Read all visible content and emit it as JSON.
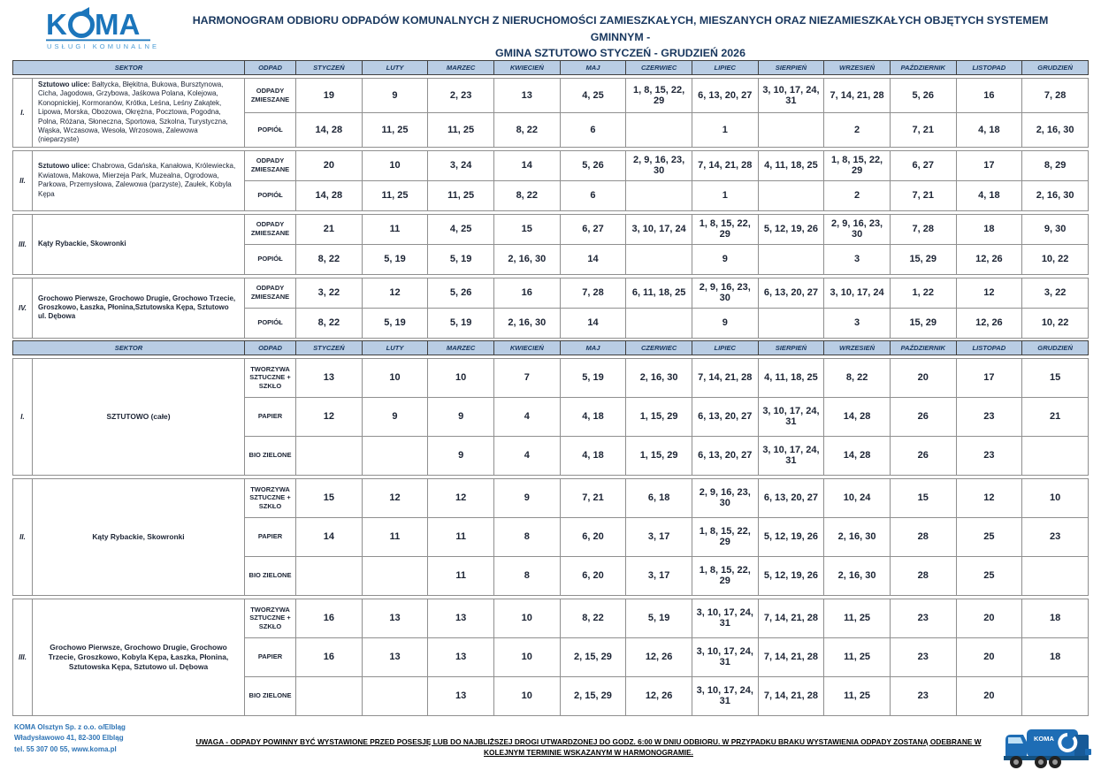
{
  "logo": {
    "brand": "KOMA",
    "tagline": "USŁUGI KOMUNALNE"
  },
  "title": {
    "line1": "HARMONOGRAM ODBIORU ODPADÓW KOMUNALNYCH Z NIERUCHOMOŚCI ZAMIESZKAŁYCH, MIESZANYCH ORAZ NIEZAMIESZKAŁYCH OBJĘTYCH SYSTEMEM GMINNYM -",
    "line2": "GMINA SZTUTOWO  STYCZEŃ - GRUDZIEŃ 2026"
  },
  "columns": {
    "sektor": "SEKTOR",
    "odpad": "ODPAD",
    "months": [
      "STYCZEŃ",
      "LUTY",
      "MARZEC",
      "KWIECIEŃ",
      "MAJ",
      "CZERWIEC",
      "LIPIEC",
      "SIERPIEŃ",
      "WRZESIEŃ",
      "PAŹDZIERNIK",
      "LISTOPAD",
      "GRUDZIEŃ"
    ]
  },
  "tables": [
    {
      "sections": [
        {
          "roman": "I.",
          "sector_bold": "Sztutowo ulice:",
          "sector_rest": " Bałtycka, Błękitna, Bukowa, Bursztynowa, Cicha, Jagodowa, Grzybowa, Jaśkowa Polana, Kolejowa, Konopnickiej, Kormoranów, Krótka, Leśna, Leśny Zakątek, Lipowa, Morska, Obozowa, Okrężna, Pocztowa, Pogodna, Polna, Różana, Słoneczna, Sportowa, Szkolna, Turystyczna, Wąska, Wczasowa, Wesoła, Wrzosowa, Zalewowa (nieparzyste)",
          "rows": [
            {
              "odpad": "ODPADY ZMIESZANE",
              "values": [
                "19",
                "9",
                "2, 23",
                "13",
                "4, 25",
                "1, 8, 15, 22, 29",
                "6, 13, 20, 27",
                "3, 10, 17, 24, 31",
                "7, 14, 21, 28",
                "5, 26",
                "16",
                "7, 28"
              ]
            },
            {
              "odpad": "POPIÓŁ",
              "values": [
                "14, 28",
                "11, 25",
                "11, 25",
                "8, 22",
                "6",
                "",
                "1",
                "",
                "2",
                "7, 21",
                "4, 18",
                "2, 16, 30"
              ]
            }
          ]
        },
        {
          "roman": "II.",
          "sector_bold": "Sztutowo ulice:",
          "sector_rest": " Chabrowa, Gdańska, Kanałowa, Królewiecka, Kwiatowa, Makowa, Mierzeja Park, Muzealna, Ogrodowa, Parkowa, Przemysłowa, Zalewowa (parzyste), Zaułek, Kobyla Kępa",
          "rows": [
            {
              "odpad": "ODPADY ZMIESZANE",
              "values": [
                "20",
                "10",
                "3, 24",
                "14",
                "5, 26",
                "2, 9, 16, 23, 30",
                "7, 14, 21, 28",
                "4, 11, 18, 25",
                "1, 8, 15, 22, 29",
                "6, 27",
                "17",
                "8, 29"
              ]
            },
            {
              "odpad": "POPIÓŁ",
              "values": [
                "14, 28",
                "11, 25",
                "11, 25",
                "8, 22",
                "6",
                "",
                "1",
                "",
                "2",
                "7, 21",
                "4, 18",
                "2, 16, 30"
              ]
            }
          ]
        },
        {
          "roman": "III.",
          "sector_bold": "Kąty Rybackie, Skowronki",
          "sector_rest": "",
          "rows": [
            {
              "odpad": "ODPADY ZMIESZANE",
              "values": [
                "21",
                "11",
                "4, 25",
                "15",
                "6, 27",
                "3, 10, 17, 24",
                "1, 8, 15, 22, 29",
                "5, 12, 19, 26",
                "2, 9, 16, 23, 30",
                "7, 28",
                "18",
                "9, 30"
              ]
            },
            {
              "odpad": "POPIÓŁ",
              "values": [
                "8, 22",
                "5, 19",
                "5, 19",
                "2, 16, 30",
                "14",
                "",
                "9",
                "",
                "3",
                "15, 29",
                "12, 26",
                "10, 22"
              ]
            }
          ]
        },
        {
          "roman": "IV.",
          "sector_bold": "Grochowo Pierwsze, Grochowo Drugie, Grochowo Trzecie, Groszkowo, Łaszka, Płonina,Sztutowska Kępa, Sztutowo ul. Dębowa",
          "sector_rest": "",
          "rows": [
            {
              "odpad": "ODPADY ZMIESZANE",
              "values": [
                "3, 22",
                "12",
                "5, 26",
                "16",
                "7, 28",
                "6, 11, 18, 25",
                "2, 9, 16, 23, 30",
                "6, 13, 20, 27",
                "3, 10, 17, 24",
                "1, 22",
                "12",
                "3, 22"
              ]
            },
            {
              "odpad": "POPIÓŁ",
              "values": [
                "8, 22",
                "5, 19",
                "5, 19",
                "2, 16, 30",
                "14",
                "",
                "9",
                "",
                "3",
                "15, 29",
                "12, 26",
                "10, 22"
              ]
            }
          ]
        }
      ]
    },
    {
      "sections": [
        {
          "roman": "I.",
          "sector_bold": "SZTUTOWO (całe)",
          "sector_rest": "",
          "rows": [
            {
              "odpad": "TWORZYWA SZTUCZNE + SZKŁO",
              "values": [
                "13",
                "10",
                "10",
                "7",
                "5, 19",
                "2, 16, 30",
                "7, 14, 21, 28",
                "4, 11, 18, 25",
                "8, 22",
                "20",
                "17",
                "15"
              ]
            },
            {
              "odpad": "PAPIER",
              "values": [
                "12",
                "9",
                "9",
                "4",
                "4, 18",
                "1, 15, 29",
                "6, 13, 20, 27",
                "3, 10, 17, 24, 31",
                "14, 28",
                "26",
                "23",
                "21"
              ]
            },
            {
              "odpad": "BIO ZIELONE",
              "values": [
                "",
                "",
                "9",
                "4",
                "4, 18",
                "1, 15, 29",
                "6, 13, 20, 27",
                "3, 10, 17, 24, 31",
                "14, 28",
                "26",
                "23",
                ""
              ]
            }
          ]
        },
        {
          "roman": "II.",
          "sector_bold": "Kąty Rybackie, Skowronki",
          "sector_rest": "",
          "rows": [
            {
              "odpad": "TWORZYWA SZTUCZNE + SZKŁO",
              "values": [
                "15",
                "12",
                "12",
                "9",
                "7, 21",
                "6, 18",
                "2, 9, 16, 23, 30",
                "6, 13, 20, 27",
                "10, 24",
                "15",
                "12",
                "10"
              ]
            },
            {
              "odpad": "PAPIER",
              "values": [
                "14",
                "11",
                "11",
                "8",
                "6, 20",
                "3, 17",
                "1, 8, 15, 22, 29",
                "5, 12, 19, 26",
                "2, 16, 30",
                "28",
                "25",
                "23"
              ]
            },
            {
              "odpad": "BIO ZIELONE",
              "values": [
                "",
                "",
                "11",
                "8",
                "6, 20",
                "3, 17",
                "1, 8, 15, 22, 29",
                "5, 12, 19, 26",
                "2, 16, 30",
                "28",
                "25",
                ""
              ]
            }
          ]
        },
        {
          "roman": "III.",
          "sector_bold": "Grochowo Pierwsze, Grochowo Drugie, Grochowo Trzecie, Groszkowo, Kobyla Kępa, Łaszka, Płonina, Sztutowska Kępa, Sztutowo ul. Dębowa",
          "sector_rest": "",
          "rows": [
            {
              "odpad": "TWORZYWA SZTUCZNE + SZKŁO",
              "values": [
                "16",
                "13",
                "13",
                "10",
                "8, 22",
                "5, 19",
                "3, 10, 17, 24, 31",
                "7, 14, 21, 28",
                "11, 25",
                "23",
                "20",
                "18"
              ]
            },
            {
              "odpad": "PAPIER",
              "values": [
                "16",
                "13",
                "13",
                "10",
                "2, 15, 29",
                "12, 26",
                "3, 10, 17, 24, 31",
                "7, 14, 21, 28",
                "11, 25",
                "23",
                "20",
                "18"
              ]
            },
            {
              "odpad": "BIO ZIELONE",
              "values": [
                "",
                "",
                "13",
                "10",
                "2, 15, 29",
                "12, 26",
                "3, 10, 17, 24, 31",
                "7, 14, 21, 28",
                "11, 25",
                "23",
                "20",
                ""
              ]
            }
          ]
        }
      ]
    }
  ],
  "footer": {
    "address_line1": "KOMA Olsztyn Sp. z o.o. o/Elbląg",
    "address_line2": "Władysławowo 41, 82-300 Elbląg",
    "address_line3": "tel. 55 307 00 55, www.koma.pl",
    "note": "UWAGA - ODPADY POWINNY BYĆ WYSTAWIONE PRZED POSESJĘ LUB DO NAJBLIŻSZEJ DROGI UTWARDZONEJ DO GODZ. 6:00 W DNIU ODBIORU. W PRZYPADKU BRAKU WYSTAWIENIA ODPADY ZOSTANĄ ODEBRANE W KOLEJNYM TERMINIE WSKAZANYM W HARMONOGRAMIE.",
    "truck_brand": "KOMA"
  },
  "colors": {
    "header_bg": "#b9cde4",
    "header_text": "#17365d",
    "title_text": "#17365d",
    "brand_blue": "#1b75bb",
    "address_blue": "#2e74b5"
  }
}
